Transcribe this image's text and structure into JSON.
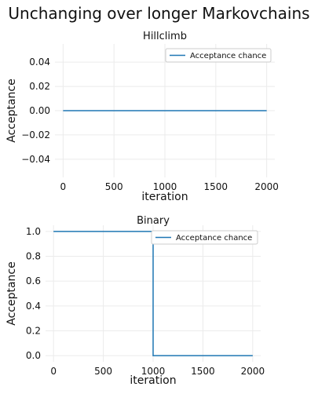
{
  "figure_title": "Unchanging over longer Markovchains",
  "chart_data": [
    {
      "type": "line",
      "title": "Hillclimb",
      "xlabel": "iteration",
      "ylabel": "Acceptance",
      "xlim": [
        -80,
        2080
      ],
      "ylim": [
        -0.055,
        0.055
      ],
      "xticks": [
        0,
        500,
        1000,
        1500,
        2000
      ],
      "yticks": [
        0.04,
        0.02,
        0.0,
        -0.02,
        -0.04
      ],
      "xtick_labels": [
        "0",
        "500",
        "1000",
        "1500",
        "2000"
      ],
      "ytick_labels": [
        "0.04",
        "0.02",
        "0.00",
        "−0.02",
        "−0.04"
      ],
      "grid": true,
      "legend": "top-right",
      "series": [
        {
          "name": "Acceptance chance",
          "color": "#1f77b4",
          "x": [
            0,
            2000
          ],
          "y": [
            0.0,
            0.0
          ]
        }
      ]
    },
    {
      "type": "line",
      "title": "Binary",
      "xlabel": "iteration",
      "ylabel": "Acceptance",
      "xlim": [
        -80,
        2080
      ],
      "ylim": [
        -0.05,
        1.05
      ],
      "xticks": [
        0,
        500,
        1000,
        1500,
        2000
      ],
      "yticks": [
        1.0,
        0.8,
        0.6,
        0.4,
        0.2,
        0.0
      ],
      "xtick_labels": [
        "0",
        "500",
        "1000",
        "1500",
        "2000"
      ],
      "ytick_labels": [
        "1.0",
        "0.8",
        "0.6",
        "0.4",
        "0.2",
        "0.0"
      ],
      "grid": true,
      "legend": "top-right",
      "series": [
        {
          "name": "Acceptance chance",
          "color": "#1f77b4",
          "x": [
            0,
            1000,
            1000,
            2000
          ],
          "y": [
            1.0,
            1.0,
            0.0,
            0.0
          ]
        }
      ]
    }
  ]
}
